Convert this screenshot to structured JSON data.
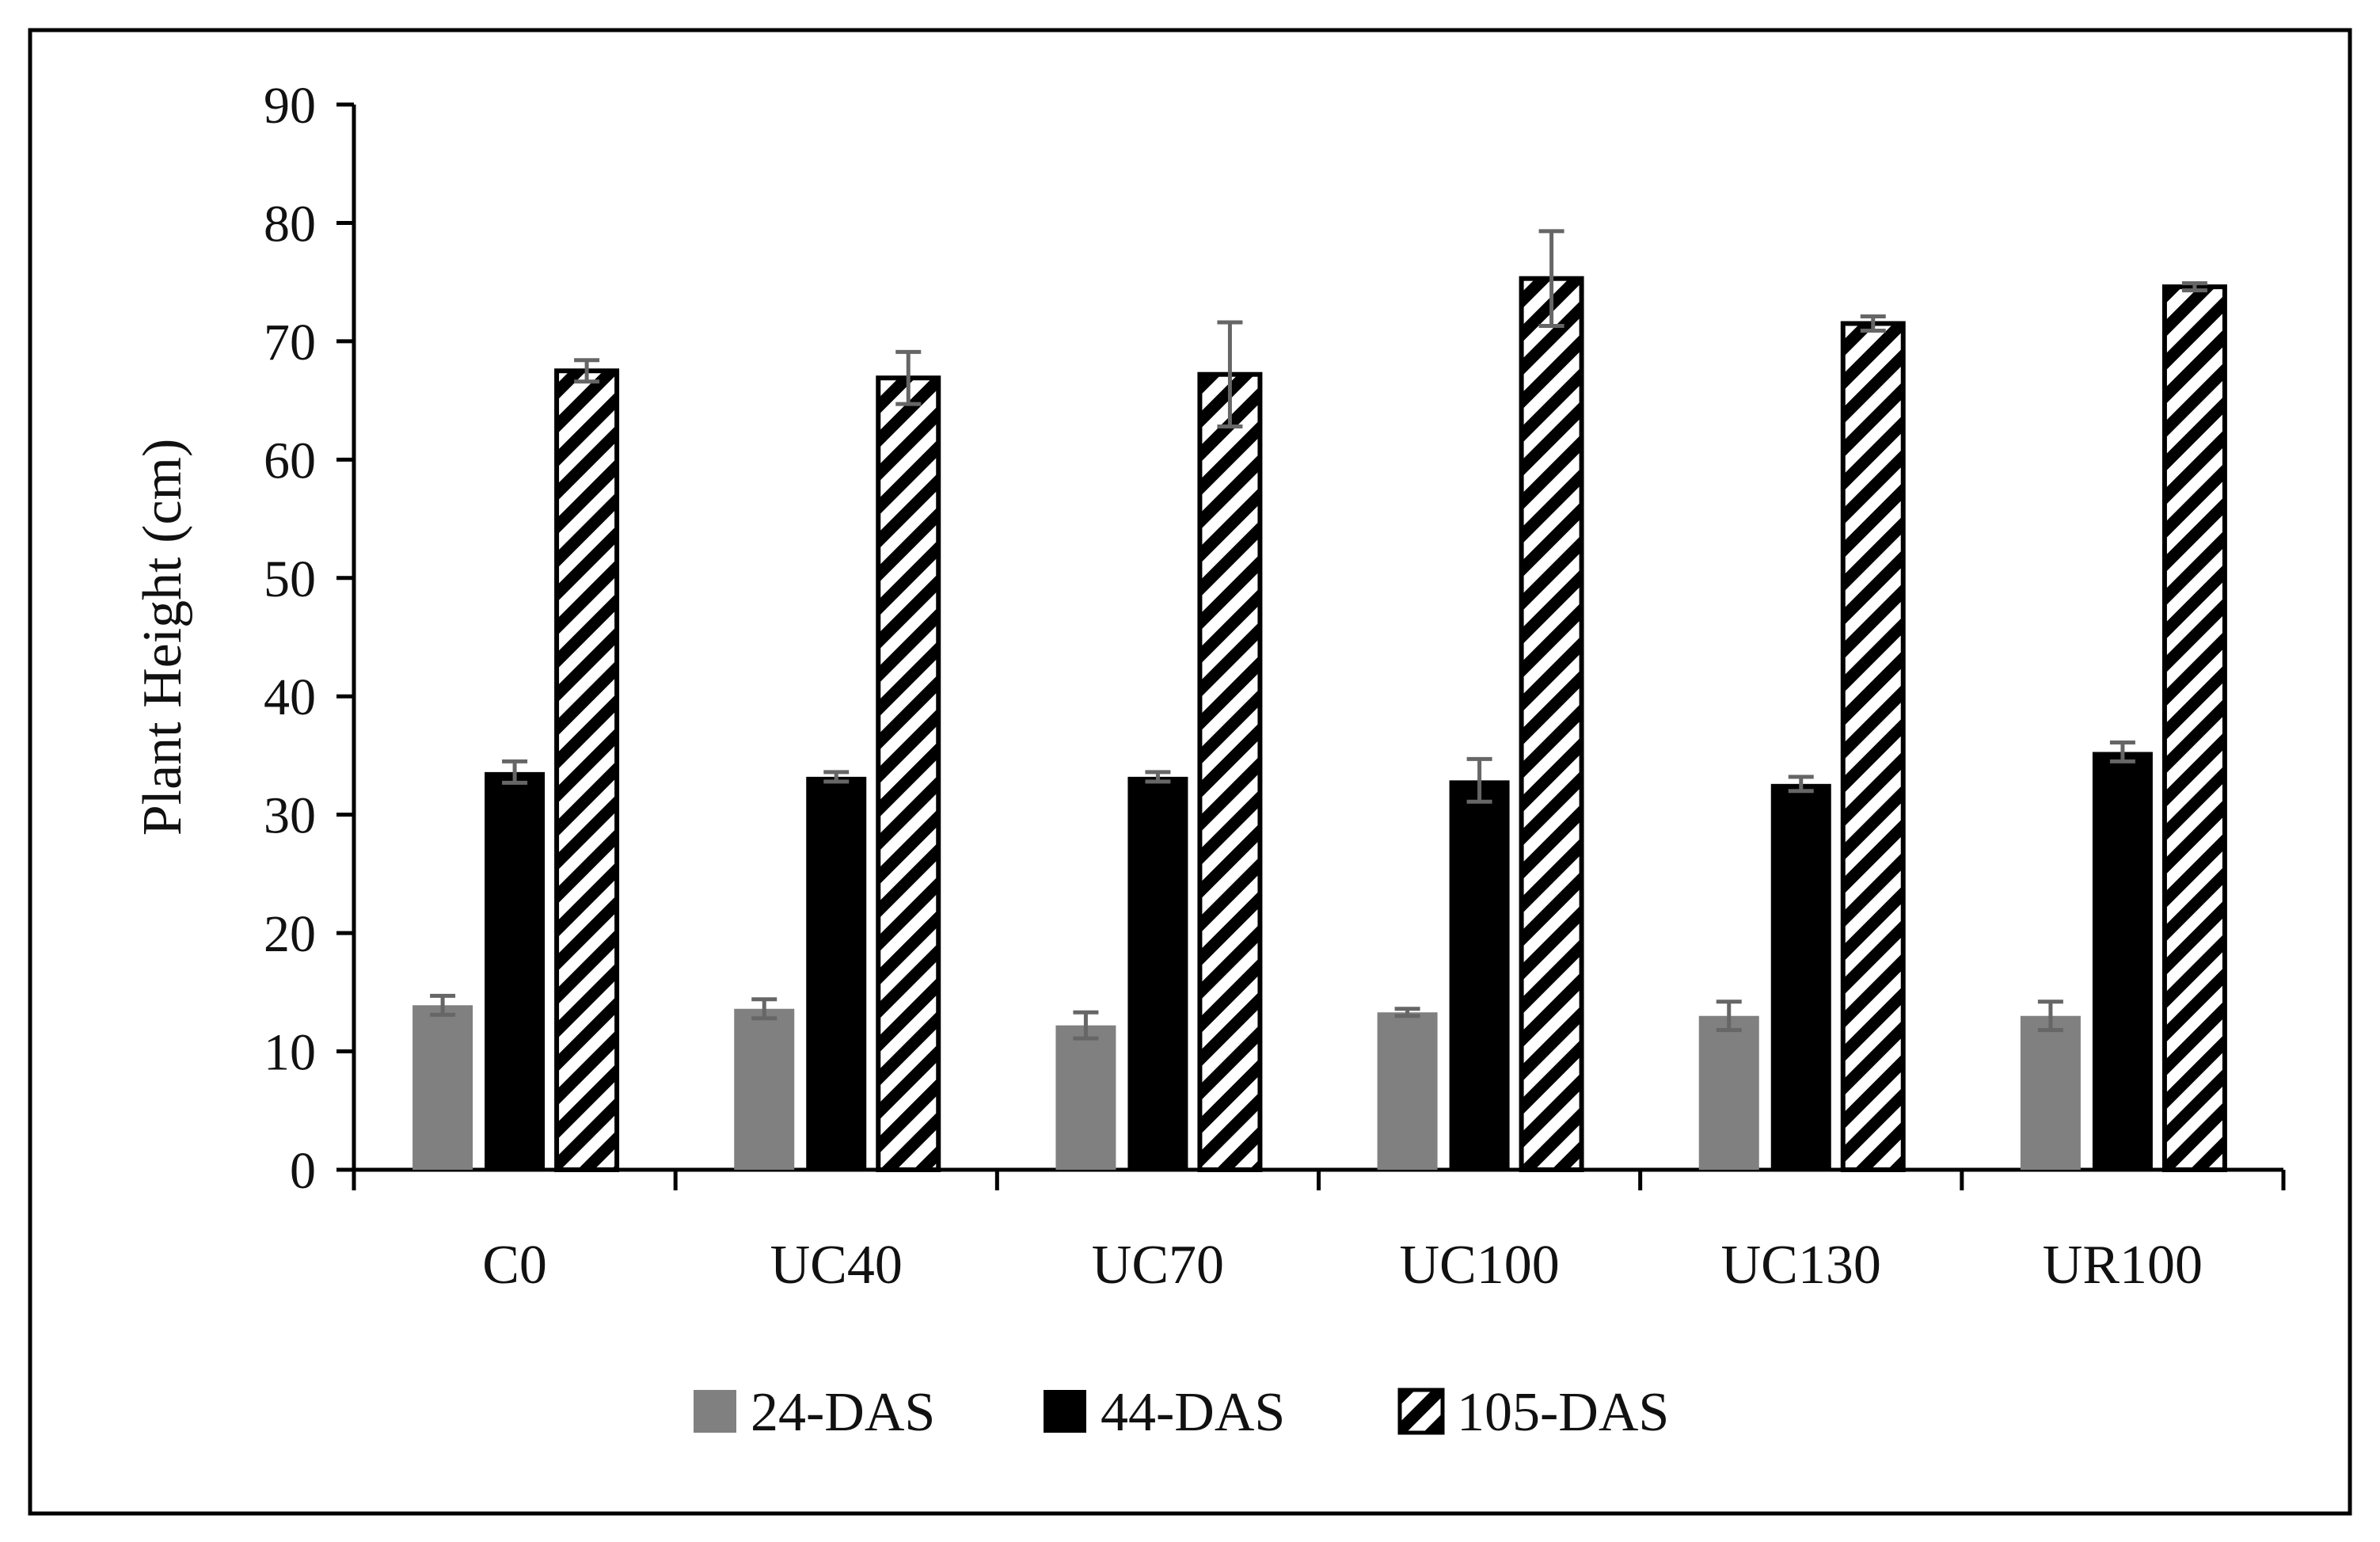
{
  "chart_data": {
    "type": "bar",
    "title": "",
    "xlabel": "",
    "ylabel": "Plant Height (cm)",
    "ylim": [
      0,
      90
    ],
    "yticks": [
      "0",
      "10",
      "20",
      "30",
      "40",
      "50",
      "60",
      "70",
      "80",
      "90"
    ],
    "categories": [
      "C0",
      "UC40",
      "UC70",
      "UC100",
      "UC130",
      "UR100"
    ],
    "series": [
      {
        "name": "24-DAS",
        "fill": "#808080",
        "pattern": "solid",
        "values": [
          13.9,
          13.6,
          12.2,
          13.3,
          13.0,
          13.0
        ],
        "errors": [
          0.8,
          0.8,
          1.1,
          0.3,
          1.2,
          1.2
        ]
      },
      {
        "name": "44-DAS",
        "fill": "#000000",
        "pattern": "solid",
        "values": [
          33.6,
          33.2,
          33.2,
          32.9,
          32.6,
          35.3
        ],
        "errors": [
          0.9,
          0.4,
          0.4,
          1.8,
          0.6,
          0.8
        ]
      },
      {
        "name": "105-DAS",
        "fill": "#000000",
        "pattern": "diagonal-stripes",
        "values": [
          67.5,
          66.9,
          67.2,
          75.3,
          71.5,
          74.6
        ],
        "errors": [
          0.9,
          2.2,
          4.4,
          4.0,
          0.6,
          0.3
        ]
      }
    ],
    "legend_position": "bottom",
    "grid": false,
    "error_bar_color": "#666666"
  }
}
